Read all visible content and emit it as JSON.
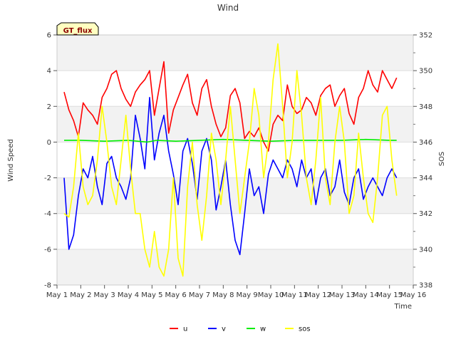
{
  "chart_data": {
    "type": "line",
    "title": "Wind",
    "site_label": "GT_flux",
    "xlabel": "Time",
    "ylabel": "Wind Speed",
    "y2label": "SOS",
    "xlim": [
      1,
      16
    ],
    "ylim": [
      -8,
      6
    ],
    "y2lim": [
      338,
      352
    ],
    "x_ticks": [
      {
        "value": 1,
        "label": "May 1"
      },
      {
        "value": 2,
        "label": "May 2"
      },
      {
        "value": 3,
        "label": "May 3"
      },
      {
        "value": 4,
        "label": "May 4"
      },
      {
        "value": 5,
        "label": "May 5"
      },
      {
        "value": 6,
        "label": "May 6"
      },
      {
        "value": 7,
        "label": "May 7"
      },
      {
        "value": 8,
        "label": "May 8"
      },
      {
        "value": 9,
        "label": "May 9"
      },
      {
        "value": 10,
        "label": "May 10"
      },
      {
        "value": 11,
        "label": "May 11"
      },
      {
        "value": 12,
        "label": "May 12"
      },
      {
        "value": 13,
        "label": "May 13"
      },
      {
        "value": 14,
        "label": "May 14"
      },
      {
        "value": 15,
        "label": "May 15"
      },
      {
        "value": 16,
        "label": "May 16"
      }
    ],
    "y_ticks": [
      -8,
      -6,
      -4,
      -2,
      0,
      2,
      4,
      6
    ],
    "y2_ticks": [
      338,
      340,
      342,
      344,
      346,
      348,
      350,
      352
    ],
    "grid": true,
    "legend_position": "bottom-center",
    "series": [
      {
        "name": "u",
        "axis": "left",
        "color": "#ff0000",
        "x": [
          1.3,
          1.5,
          1.7,
          1.9,
          2.1,
          2.3,
          2.5,
          2.7,
          2.9,
          3.1,
          3.3,
          3.5,
          3.7,
          3.9,
          4.1,
          4.3,
          4.5,
          4.7,
          4.9,
          5.1,
          5.3,
          5.5,
          5.7,
          5.9,
          6.1,
          6.3,
          6.5,
          6.7,
          6.9,
          7.1,
          7.3,
          7.5,
          7.7,
          7.9,
          8.1,
          8.3,
          8.5,
          8.7,
          8.9,
          9.1,
          9.3,
          9.5,
          9.7,
          9.9,
          10.1,
          10.3,
          10.5,
          10.7,
          10.9,
          11.1,
          11.3,
          11.5,
          11.7,
          11.9,
          12.1,
          12.3,
          12.5,
          12.7,
          12.9,
          13.1,
          13.3,
          13.5,
          13.7,
          13.9,
          14.1,
          14.3,
          14.5,
          14.7,
          14.9,
          15.1,
          15.3
        ],
        "y": [
          2.8,
          1.8,
          1.2,
          0.3,
          2.2,
          1.8,
          1.5,
          1.0,
          2.5,
          3.0,
          3.8,
          4.0,
          3.0,
          2.4,
          2.0,
          2.8,
          3.2,
          3.5,
          4.0,
          1.5,
          3.0,
          4.5,
          0.5,
          1.8,
          2.5,
          3.2,
          3.8,
          2.2,
          1.5,
          3.0,
          3.5,
          2.0,
          1.0,
          0.3,
          0.8,
          2.6,
          3.0,
          2.2,
          0.2,
          0.6,
          0.3,
          0.8,
          0.0,
          -0.5,
          1.0,
          1.5,
          1.2,
          3.2,
          2.0,
          1.6,
          1.8,
          2.5,
          2.2,
          1.5,
          2.6,
          3.0,
          3.2,
          2.0,
          2.6,
          3.0,
          1.6,
          1.0,
          2.5,
          3.0,
          4.0,
          3.2,
          2.8,
          4.0,
          3.5,
          3.0,
          3.6
        ]
      },
      {
        "name": "v",
        "axis": "left",
        "color": "#0000ff",
        "x": [
          1.3,
          1.5,
          1.7,
          1.9,
          2.1,
          2.3,
          2.5,
          2.7,
          2.9,
          3.1,
          3.3,
          3.5,
          3.7,
          3.9,
          4.1,
          4.3,
          4.5,
          4.7,
          4.9,
          5.1,
          5.3,
          5.5,
          5.7,
          5.9,
          6.1,
          6.3,
          6.5,
          6.7,
          6.9,
          7.1,
          7.3,
          7.5,
          7.7,
          7.9,
          8.1,
          8.3,
          8.5,
          8.7,
          8.9,
          9.1,
          9.3,
          9.5,
          9.7,
          9.9,
          10.1,
          10.3,
          10.5,
          10.7,
          10.9,
          11.1,
          11.3,
          11.5,
          11.7,
          11.9,
          12.1,
          12.3,
          12.5,
          12.7,
          12.9,
          13.1,
          13.3,
          13.5,
          13.7,
          13.9,
          14.1,
          14.3,
          14.5,
          14.7,
          14.9,
          15.1,
          15.3
        ],
        "y": [
          -2.0,
          -6.0,
          -5.2,
          -3.0,
          -1.5,
          -2.0,
          -0.8,
          -2.5,
          -3.5,
          -1.2,
          -0.8,
          -2.0,
          -2.5,
          -3.2,
          -2.0,
          1.5,
          0.2,
          -1.5,
          2.5,
          -1.0,
          0.5,
          1.5,
          -0.5,
          -1.8,
          -3.5,
          -0.5,
          0.2,
          -1.2,
          -3.2,
          -0.5,
          0.2,
          -1.0,
          -3.8,
          -2.5,
          -1.0,
          -3.5,
          -5.5,
          -6.3,
          -4.0,
          -1.5,
          -3.0,
          -2.5,
          -4.0,
          -1.8,
          -1.0,
          -1.5,
          -2.0,
          -1.0,
          -1.5,
          -2.5,
          -1.0,
          -2.0,
          -1.5,
          -3.5,
          -2.0,
          -1.5,
          -3.0,
          -2.5,
          -1.0,
          -2.8,
          -3.5,
          -2.0,
          -1.5,
          -3.2,
          -2.5,
          -2.0,
          -2.5,
          -3.0,
          -2.0,
          -1.5,
          -2.0
        ]
      },
      {
        "name": "w",
        "axis": "left",
        "color": "#00ee00",
        "x": [
          1.3,
          2.0,
          3.0,
          4.0,
          4.8,
          5.2,
          6.0,
          7.0,
          8.0,
          9.0,
          10.0,
          11.0,
          12.0,
          13.0,
          14.0,
          15.0,
          15.3
        ],
        "y": [
          0.1,
          0.1,
          0.05,
          0.1,
          0.0,
          0.1,
          0.05,
          0.1,
          0.15,
          0.1,
          0.05,
          0.1,
          0.1,
          0.1,
          0.15,
          0.1,
          0.1
        ]
      },
      {
        "name": "sos",
        "axis": "right",
        "color": "#ffff00",
        "x": [
          1.3,
          1.5,
          1.7,
          1.9,
          2.1,
          2.3,
          2.5,
          2.7,
          2.9,
          3.1,
          3.3,
          3.5,
          3.7,
          3.9,
          4.1,
          4.3,
          4.5,
          4.7,
          4.9,
          5.1,
          5.3,
          5.5,
          5.7,
          5.9,
          6.1,
          6.3,
          6.5,
          6.7,
          6.9,
          7.1,
          7.3,
          7.5,
          7.7,
          7.9,
          8.1,
          8.3,
          8.5,
          8.7,
          8.9,
          9.1,
          9.3,
          9.5,
          9.7,
          9.9,
          10.1,
          10.3,
          10.5,
          10.7,
          10.9,
          11.1,
          11.3,
          11.5,
          11.7,
          11.9,
          12.1,
          12.3,
          12.5,
          12.7,
          12.9,
          13.1,
          13.3,
          13.5,
          13.7,
          13.9,
          14.1,
          14.3,
          14.5,
          14.7,
          14.9,
          15.1,
          15.3
        ],
        "y": [
          342.0,
          341.8,
          343.5,
          346.5,
          343.5,
          342.5,
          343.0,
          345.0,
          348.0,
          346.0,
          343.5,
          342.5,
          345.0,
          347.5,
          344.5,
          342.0,
          342.0,
          340.0,
          339.0,
          341.0,
          339.0,
          338.5,
          340.0,
          344.0,
          339.5,
          338.5,
          343.5,
          346.0,
          342.5,
          340.5,
          343.0,
          346.5,
          345.0,
          342.5,
          345.0,
          348.0,
          345.0,
          342.0,
          344.0,
          346.0,
          349.0,
          347.5,
          344.0,
          346.0,
          349.5,
          351.5,
          348.0,
          344.0,
          346.0,
          350.0,
          347.5,
          344.0,
          342.5,
          345.0,
          348.5,
          344.0,
          342.5,
          346.0,
          348.0,
          346.0,
          342.0,
          343.0,
          346.5,
          344.0,
          342.0,
          341.5,
          344.0,
          347.5,
          348.0,
          345.0,
          343.0
        ]
      }
    ]
  }
}
